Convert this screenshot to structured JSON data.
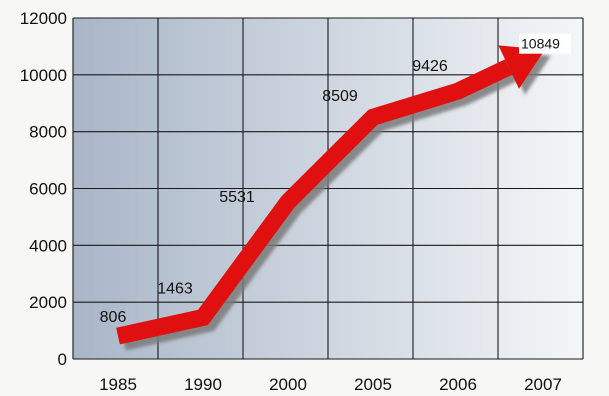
{
  "chart_data": {
    "type": "line",
    "title": "",
    "xlabel": "",
    "ylabel": "",
    "categories": [
      "1985",
      "1990",
      "2000",
      "2005",
      "2006",
      "2007"
    ],
    "series": [
      {
        "values": [
          806,
          1463,
          5531,
          8509,
          9426,
          10849
        ]
      }
    ],
    "data_labels": [
      "806",
      "1463",
      "5531",
      "8509",
      "9426",
      "10849"
    ],
    "ylim": [
      0,
      12000
    ],
    "yticks": [
      "0",
      "2000",
      "4000",
      "6000",
      "8000",
      "10000",
      "12000"
    ],
    "grid": true,
    "line_style": "thick arrow with drop shadow",
    "colors": {
      "line": "#e01010",
      "shadow": "#7a7a7a",
      "grid": "#1a1a1a",
      "plot_left": "#a9b6c8",
      "plot_right": "#f4f6f8"
    }
  }
}
